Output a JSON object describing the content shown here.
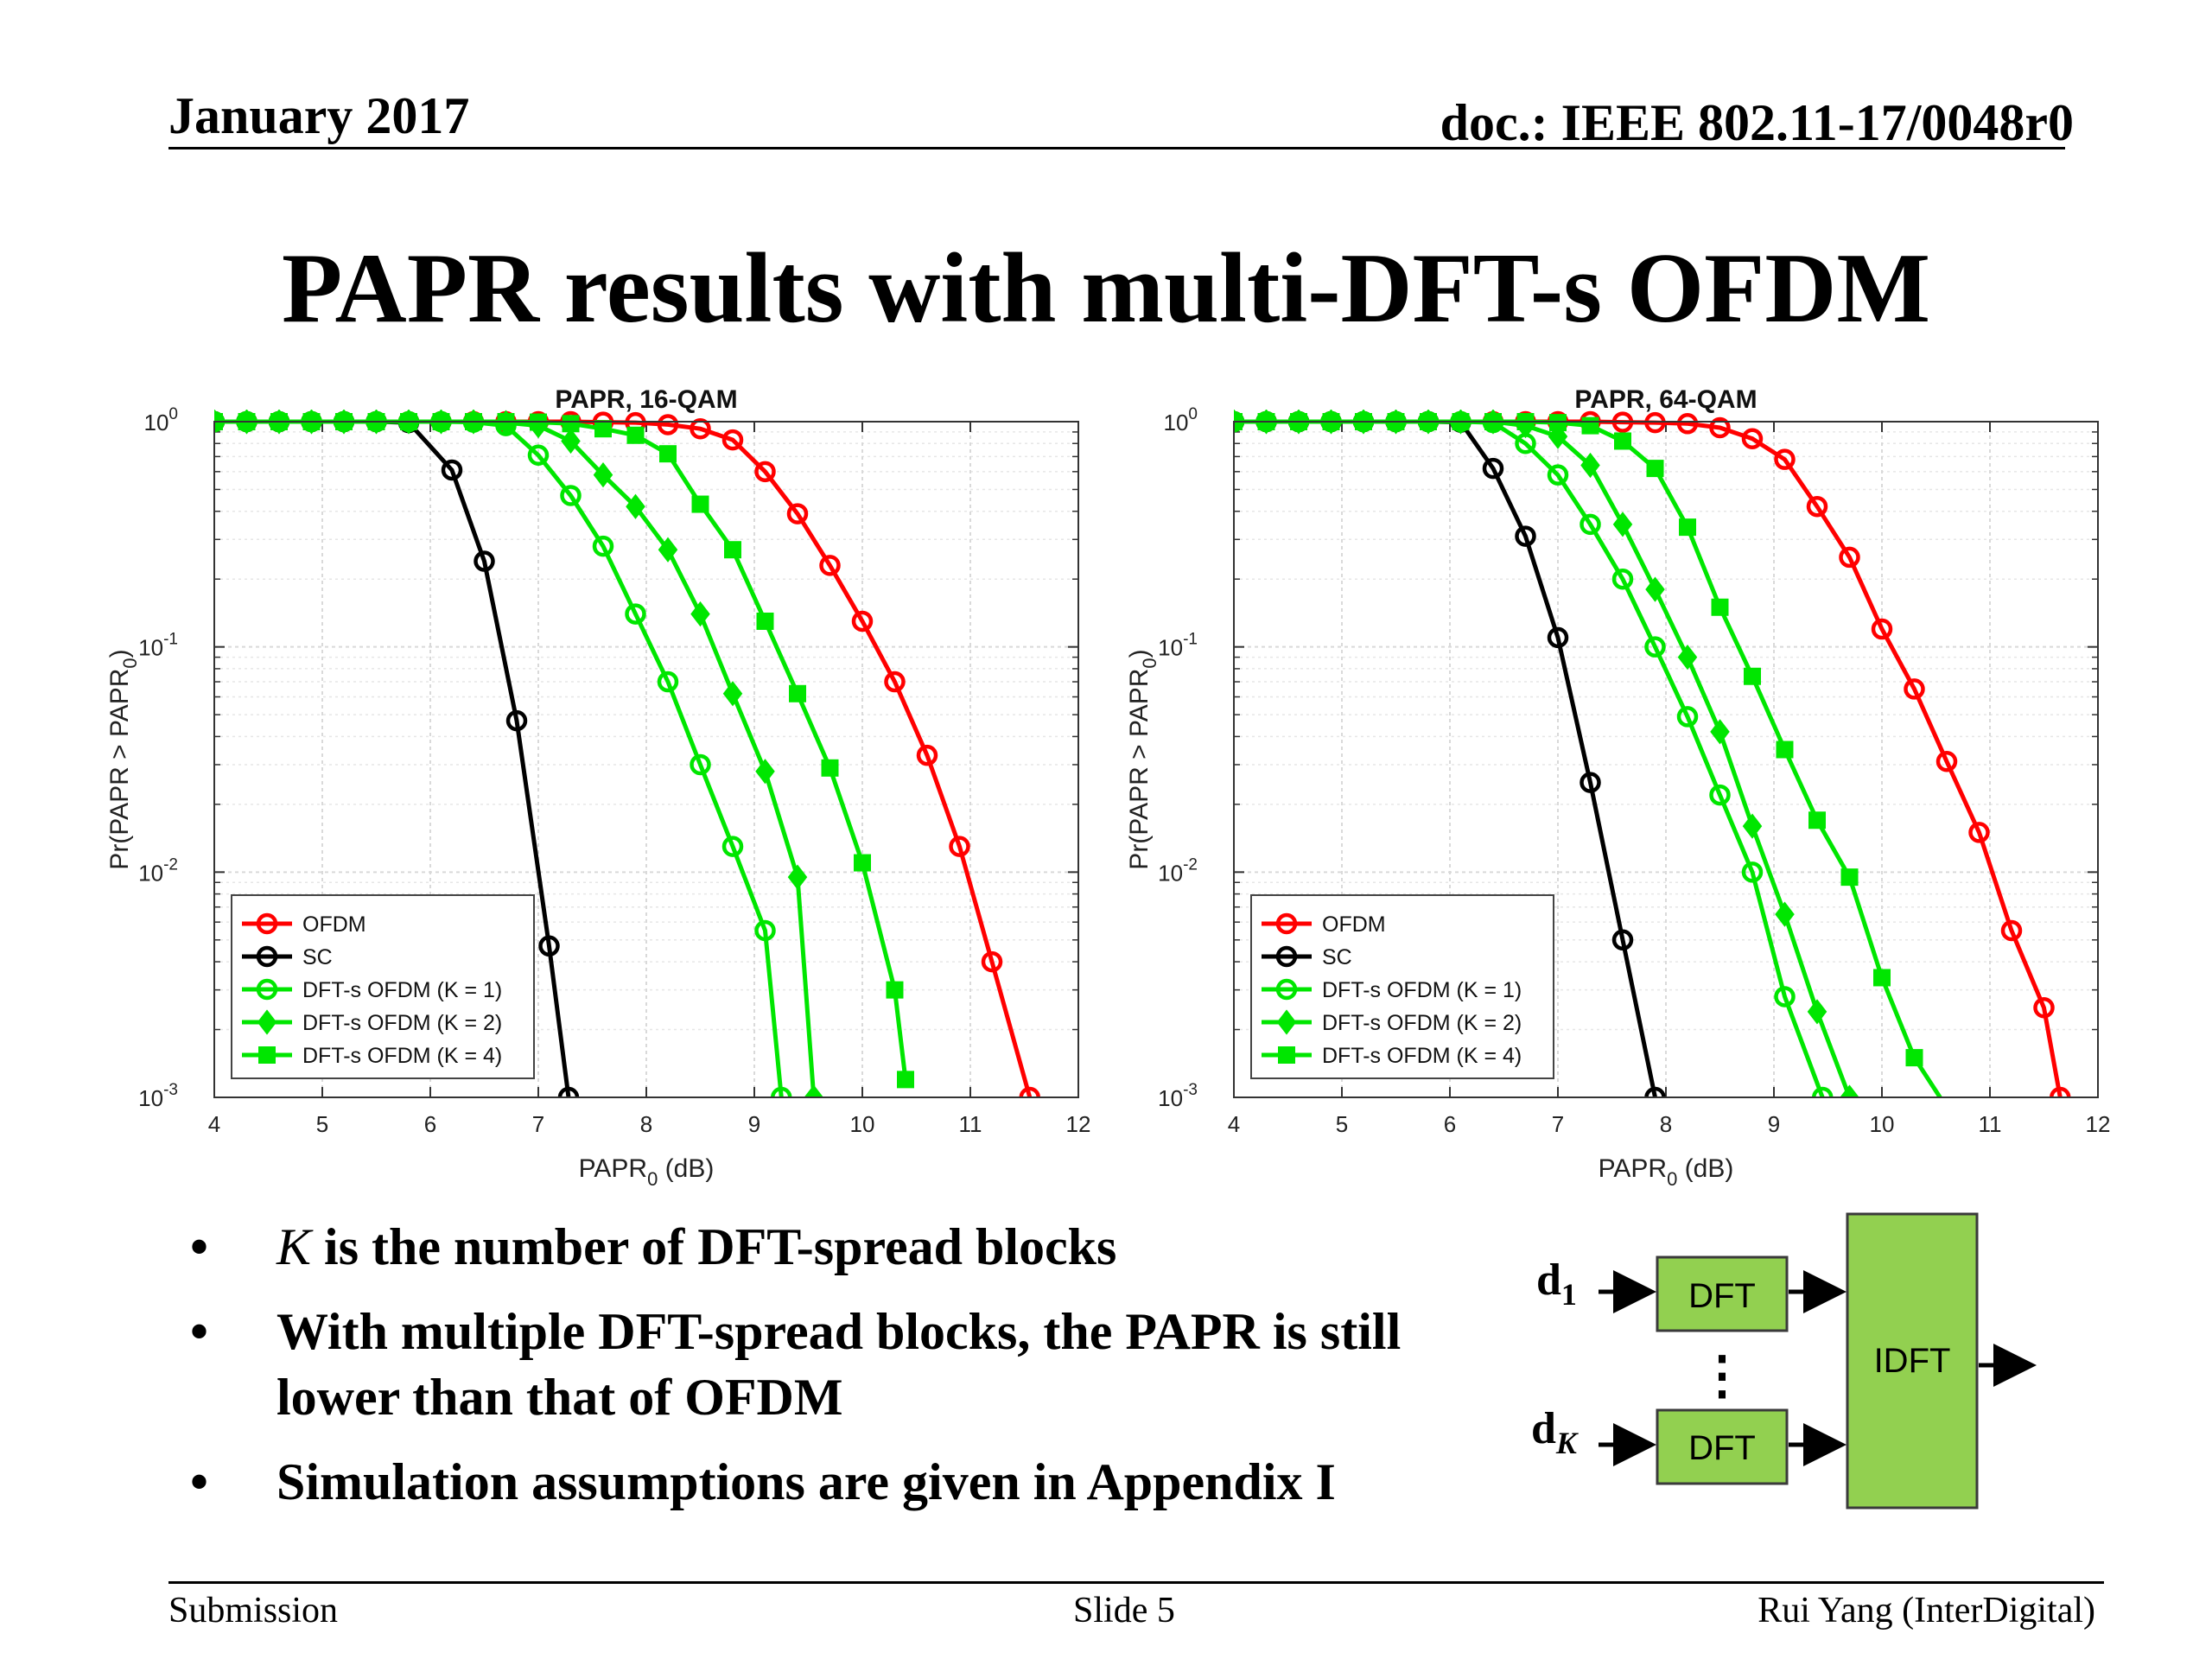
{
  "header": {
    "date": "January 2017",
    "doc": "doc.: IEEE 802.11-17/0048r0"
  },
  "slide_title": "PAPR results with multi-DFT-s OFDM",
  "bullets": [
    {
      "var": "K",
      "text": " is the number of DFT-spread blocks"
    },
    {
      "var": "",
      "text": "With multiple DFT-spread blocks, the PAPR is still lower than that of OFDM"
    },
    {
      "var": "",
      "text": "Simulation assumptions are given in Appendix I"
    }
  ],
  "bullet_symbol": "•",
  "diagram": {
    "inputs": [
      {
        "base": "d",
        "sub": "1"
      },
      {
        "base": "d",
        "sub": "K"
      }
    ],
    "block_label": "DFT",
    "combiner_label": "IDFT",
    "ellipsis": "⋮",
    "colors": {
      "block_fill": "#92d050",
      "block_stroke": "#3a3a3a"
    }
  },
  "footer": {
    "left": "Submission",
    "center": "Slide 5",
    "right": "Rui Yang (InterDigital)"
  },
  "chart_data": [
    {
      "type": "line",
      "title": "PAPR, 16-QAM",
      "xlabel": "PAPR",
      "xlabel_sub": "0",
      "xlabel_unit": " (dB)",
      "ylabel": "Pr(PAPR > PAPR",
      "ylabel_sub": "0",
      "ylabel_end": ")",
      "xlim": [
        4,
        12
      ],
      "ylim": [
        0.001,
        1
      ],
      "yscale": "log",
      "xticks": [
        "4",
        "5",
        "6",
        "7",
        "8",
        "9",
        "10",
        "11",
        "12"
      ],
      "ytick_exponents": [
        "0",
        "-1",
        "-2",
        "-3"
      ],
      "ytick_base": "10",
      "grid": true,
      "legend_position": "bottom-left",
      "series": [
        {
          "name": "OFDM",
          "color": "#ff0000",
          "marker": "circle",
          "x": [
            4,
            4.3,
            4.6,
            4.9,
            5.2,
            5.5,
            5.8,
            6.1,
            6.4,
            6.7,
            7,
            7.3,
            7.6,
            7.9,
            8.2,
            8.5,
            8.8,
            9.1,
            9.4,
            9.7,
            10,
            10.3,
            10.6,
            10.9,
            11.2,
            11.55
          ],
          "y": [
            1,
            1,
            1,
            1,
            1,
            1,
            1,
            1,
            1,
            1,
            1,
            1,
            0.995,
            0.99,
            0.97,
            0.93,
            0.83,
            0.6,
            0.39,
            0.23,
            0.13,
            0.07,
            0.033,
            0.013,
            0.004,
            0.001
          ]
        },
        {
          "name": "SC",
          "color": "#000000",
          "marker": "circle",
          "x": [
            4,
            4.3,
            4.6,
            4.9,
            5.2,
            5.5,
            5.8,
            6.2,
            6.5,
            6.8,
            7.1,
            7.28
          ],
          "y": [
            1,
            1,
            1,
            1,
            1,
            1,
            0.99,
            0.61,
            0.24,
            0.047,
            0.0047,
            0.001
          ]
        },
        {
          "name": "DFT-s OFDM (K = 1)",
          "color": "#00e600",
          "marker": "circle",
          "x": [
            4,
            4.3,
            4.6,
            4.9,
            5.2,
            5.5,
            5.8,
            6.1,
            6.4,
            6.7,
            7,
            7.3,
            7.6,
            7.9,
            8.2,
            8.5,
            8.8,
            9.1,
            9.25
          ],
          "y": [
            1,
            1,
            1,
            1,
            1,
            1,
            1,
            1,
            0.995,
            0.96,
            0.71,
            0.47,
            0.28,
            0.14,
            0.07,
            0.03,
            0.013,
            0.0055,
            0.001
          ]
        },
        {
          "name": "DFT-s OFDM (K = 2)",
          "color": "#00e600",
          "marker": "diamond",
          "x": [
            4,
            4.3,
            4.6,
            4.9,
            5.2,
            5.5,
            5.8,
            6.1,
            6.4,
            6.7,
            7,
            7.3,
            7.6,
            7.9,
            8.2,
            8.5,
            8.8,
            9.1,
            9.4,
            9.55
          ],
          "y": [
            1,
            1,
            1,
            1,
            1,
            1,
            1,
            1,
            1,
            0.99,
            0.96,
            0.82,
            0.58,
            0.42,
            0.27,
            0.14,
            0.062,
            0.028,
            0.0095,
            0.001
          ]
        },
        {
          "name": "DFT-s OFDM (K = 4)",
          "color": "#00e600",
          "marker": "square",
          "x": [
            4,
            4.3,
            4.6,
            4.9,
            5.2,
            5.5,
            5.8,
            6.1,
            6.4,
            6.7,
            7,
            7.3,
            7.6,
            7.9,
            8.2,
            8.5,
            8.8,
            9.1,
            9.4,
            9.7,
            10,
            10.3,
            10.4
          ],
          "y": [
            1,
            1,
            1,
            1,
            1,
            1,
            1,
            1,
            1,
            1,
            0.995,
            0.98,
            0.93,
            0.87,
            0.72,
            0.43,
            0.27,
            0.13,
            0.062,
            0.029,
            0.011,
            0.003,
            0.0012
          ]
        }
      ]
    },
    {
      "type": "line",
      "title": "PAPR, 64-QAM",
      "xlabel": "PAPR",
      "xlabel_sub": "0",
      "xlabel_unit": " (dB)",
      "ylabel": "Pr(PAPR > PAPR",
      "ylabel_sub": "0",
      "ylabel_end": ")",
      "xlim": [
        4,
        12
      ],
      "ylim": [
        0.001,
        1
      ],
      "yscale": "log",
      "xticks": [
        "4",
        "5",
        "6",
        "7",
        "8",
        "9",
        "10",
        "11",
        "12"
      ],
      "ytick_exponents": [
        "0",
        "-1",
        "-2",
        "-3"
      ],
      "ytick_base": "10",
      "grid": true,
      "legend_position": "bottom-left",
      "series": [
        {
          "name": "OFDM",
          "color": "#ff0000",
          "marker": "circle",
          "x": [
            4,
            4.3,
            4.6,
            4.9,
            5.2,
            5.5,
            5.8,
            6.1,
            6.4,
            6.7,
            7,
            7.3,
            7.6,
            7.9,
            8.2,
            8.5,
            8.8,
            9.1,
            9.4,
            9.7,
            10,
            10.3,
            10.6,
            10.9,
            11.2,
            11.5,
            11.65
          ],
          "y": [
            1,
            1,
            1,
            1,
            1,
            1,
            1,
            1,
            1,
            1,
            1,
            1,
            0.995,
            0.99,
            0.98,
            0.94,
            0.84,
            0.68,
            0.42,
            0.25,
            0.12,
            0.065,
            0.031,
            0.015,
            0.0055,
            0.0025,
            0.001
          ]
        },
        {
          "name": "SC",
          "color": "#000000",
          "marker": "circle",
          "x": [
            4,
            4.3,
            4.6,
            4.9,
            5.2,
            5.5,
            5.8,
            6.1,
            6.4,
            6.7,
            7,
            7.3,
            7.6,
            7.9
          ],
          "y": [
            1,
            1,
            1,
            1,
            1,
            1,
            1,
            0.995,
            0.62,
            0.31,
            0.11,
            0.025,
            0.005,
            0.001
          ]
        },
        {
          "name": "DFT-s OFDM (K = 1)",
          "color": "#00e600",
          "marker": "circle",
          "x": [
            4,
            4.3,
            4.6,
            4.9,
            5.2,
            5.5,
            5.8,
            6.1,
            6.4,
            6.7,
            7,
            7.3,
            7.6,
            7.9,
            8.2,
            8.5,
            8.8,
            9.1,
            9.45
          ],
          "y": [
            1,
            1,
            1,
            1,
            1,
            1,
            1,
            1,
            0.99,
            0.8,
            0.58,
            0.35,
            0.2,
            0.1,
            0.049,
            0.022,
            0.01,
            0.0028,
            0.001
          ]
        },
        {
          "name": "DFT-s OFDM (K = 2)",
          "color": "#00e600",
          "marker": "diamond",
          "x": [
            4,
            4.3,
            4.6,
            4.9,
            5.2,
            5.5,
            5.8,
            6.1,
            6.4,
            6.7,
            7,
            7.3,
            7.6,
            7.9,
            8.2,
            8.5,
            8.8,
            9.1,
            9.4,
            9.7,
            9.85
          ],
          "y": [
            1,
            1,
            1,
            1,
            1,
            1,
            1,
            1,
            1,
            0.96,
            0.86,
            0.64,
            0.35,
            0.18,
            0.09,
            0.042,
            0.016,
            0.0065,
            0.0024,
            0.001,
            0.0008
          ]
        },
        {
          "name": "DFT-s OFDM (K = 4)",
          "color": "#00e600",
          "marker": "square",
          "x": [
            4,
            4.3,
            4.6,
            4.9,
            5.2,
            5.5,
            5.8,
            6.1,
            6.4,
            6.7,
            7,
            7.3,
            7.6,
            7.9,
            8.2,
            8.5,
            8.8,
            9.1,
            9.4,
            9.7,
            10,
            10.3,
            10.6,
            10.8
          ],
          "y": [
            1,
            1,
            1,
            1,
            1,
            1,
            1,
            1,
            1,
            1,
            0.99,
            0.96,
            0.82,
            0.62,
            0.34,
            0.15,
            0.074,
            0.035,
            0.017,
            0.0095,
            0.0034,
            0.0015,
            0.0009,
            0.0008
          ]
        }
      ]
    }
  ]
}
